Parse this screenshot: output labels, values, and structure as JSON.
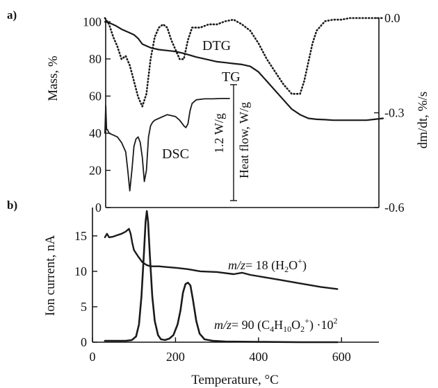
{
  "chart_data": [
    {
      "type": "line",
      "panel_label": "a)",
      "x_ticks": [],
      "xlim": [
        0,
        700
      ],
      "ylabel": "Mass, %",
      "ylim": [
        0,
        102
      ],
      "y_ticks": [
        "0",
        "20",
        "40",
        "60",
        "80",
        "100"
      ],
      "ylabel_right": "dm/dt, %/s",
      "ylim_right": [
        -0.6,
        0.0
      ],
      "y_ticks_right": [
        "0.0",
        "-0.3",
        "-0.6"
      ],
      "annotations": {
        "dtg": "DTG",
        "tg": "TG",
        "dsc": "DSC",
        "heat_flow_label": "Heat flow, W/g",
        "scale_bar_label": "1.2 W/g"
      },
      "series": [
        {
          "name": "TG",
          "axis": "left",
          "style": "solid",
          "x": [
            30,
            40,
            55,
            70,
            80,
            90,
            100,
            110,
            120,
            140,
            160,
            180,
            200,
            220,
            250,
            280,
            300,
            320,
            340,
            360,
            380,
            400,
            420,
            440,
            460,
            480,
            500,
            520,
            540,
            560,
            580,
            600,
            620,
            640,
            660,
            680,
            700
          ],
          "y": [
            100,
            99.5,
            98,
            96,
            95,
            94,
            93,
            91,
            88,
            86,
            85,
            84.5,
            84,
            83,
            81,
            79.5,
            78.5,
            78,
            77.5,
            77,
            76,
            73,
            68,
            63,
            58,
            53,
            50,
            48,
            47.5,
            47.3,
            47,
            47,
            47,
            47,
            47,
            47.5,
            48
          ]
        },
        {
          "name": "DTG",
          "axis": "right",
          "style": "dotted",
          "x": [
            30,
            40,
            50,
            60,
            70,
            80,
            90,
            100,
            110,
            120,
            130,
            140,
            150,
            160,
            170,
            180,
            190,
            200,
            210,
            220,
            230,
            240,
            260,
            280,
            300,
            320,
            340,
            360,
            380,
            400,
            420,
            440,
            460,
            480,
            500,
            510,
            520,
            530,
            540,
            560,
            580,
            600,
            620,
            640,
            660,
            680,
            700
          ],
          "y": [
            0.0,
            -0.02,
            -0.06,
            -0.09,
            -0.13,
            -0.12,
            -0.15,
            -0.2,
            -0.25,
            -0.28,
            -0.24,
            -0.13,
            -0.06,
            -0.03,
            -0.02,
            -0.03,
            -0.07,
            -0.1,
            -0.13,
            -0.13,
            -0.07,
            -0.03,
            -0.03,
            -0.02,
            -0.02,
            -0.01,
            -0.005,
            -0.02,
            -0.04,
            -0.08,
            -0.13,
            -0.17,
            -0.21,
            -0.24,
            -0.24,
            -0.2,
            -0.14,
            -0.08,
            -0.04,
            -0.01,
            -0.005,
            -0.005,
            0.0,
            0.0,
            0.0,
            0.0,
            0.0
          ]
        },
        {
          "name": "DSC",
          "axis": "left",
          "style": "solid",
          "x": [
            30,
            32,
            34,
            36,
            40,
            50,
            60,
            70,
            80,
            85,
            90,
            95,
            100,
            105,
            110,
            115,
            120,
            125,
            130,
            135,
            140,
            145,
            150,
            160,
            180,
            200,
            210,
            220,
            225,
            230,
            235,
            240,
            250,
            270,
            290,
            310,
            330
          ],
          "y": [
            40,
            55,
            42,
            42,
            40,
            39,
            38,
            35,
            30,
            20,
            9,
            20,
            33,
            37,
            38,
            35,
            27,
            14,
            20,
            38,
            44,
            46,
            47,
            48,
            50,
            49,
            47,
            44,
            43,
            45,
            52,
            56,
            58,
            58.5,
            58.5,
            58.7,
            58.7
          ]
        }
      ]
    },
    {
      "type": "line",
      "panel_label": "b)",
      "xlabel": "Temperature, °C",
      "xlim": [
        0,
        700
      ],
      "x_ticks": [
        "0",
        "200",
        "400",
        "600"
      ],
      "ylabel": "Ion current, nA",
      "ylim": [
        0,
        19
      ],
      "y_ticks": [
        "0",
        "5",
        "10",
        "15"
      ],
      "series": [
        {
          "name": "m/z = 18 (H2O+)",
          "label_parts": [
            "m/z",
            "= 18 (H",
            "2",
            "O",
            "+",
            ")"
          ],
          "x": [
            30,
            35,
            40,
            50,
            60,
            70,
            80,
            88,
            92,
            96,
            100,
            110,
            120,
            130,
            140,
            160,
            180,
            200,
            230,
            260,
            300,
            340,
            360,
            380,
            400,
            450,
            500,
            550,
            590
          ],
          "y": [
            14.8,
            15.3,
            14.8,
            14.9,
            15.1,
            15.3,
            15.6,
            16.0,
            15.3,
            14.0,
            13.0,
            12.1,
            11.3,
            10.9,
            10.7,
            10.7,
            10.6,
            10.5,
            10.3,
            10.0,
            9.9,
            9.6,
            9.8,
            9.5,
            9.3,
            8.8,
            8.3,
            7.8,
            7.5
          ]
        },
        {
          "name": "m/z = 90 (C4H10O2+) ·10^2",
          "label_parts": [
            "m/z",
            "= 90 (C",
            "4",
            "H",
            "10",
            "O",
            "2",
            "+",
            ") ·10",
            "2"
          ],
          "x": [
            30,
            80,
            95,
            105,
            112,
            118,
            124,
            128,
            131,
            134,
            138,
            144,
            150,
            158,
            165,
            175,
            185,
            195,
            205,
            212,
            218,
            224,
            230,
            236,
            242,
            250,
            258,
            270,
            290,
            320,
            400,
            500,
            590
          ],
          "y": [
            0.2,
            0.2,
            0.3,
            0.8,
            2.5,
            6.5,
            12.5,
            17.0,
            18.5,
            17.0,
            12.5,
            6.5,
            3.0,
            1.0,
            0.4,
            0.3,
            0.5,
            1.0,
            2.5,
            4.5,
            7.0,
            8.2,
            8.4,
            8.0,
            6.0,
            3.0,
            1.2,
            0.4,
            0.2,
            0.1,
            0.05,
            0.0,
            0.0
          ]
        }
      ]
    }
  ]
}
